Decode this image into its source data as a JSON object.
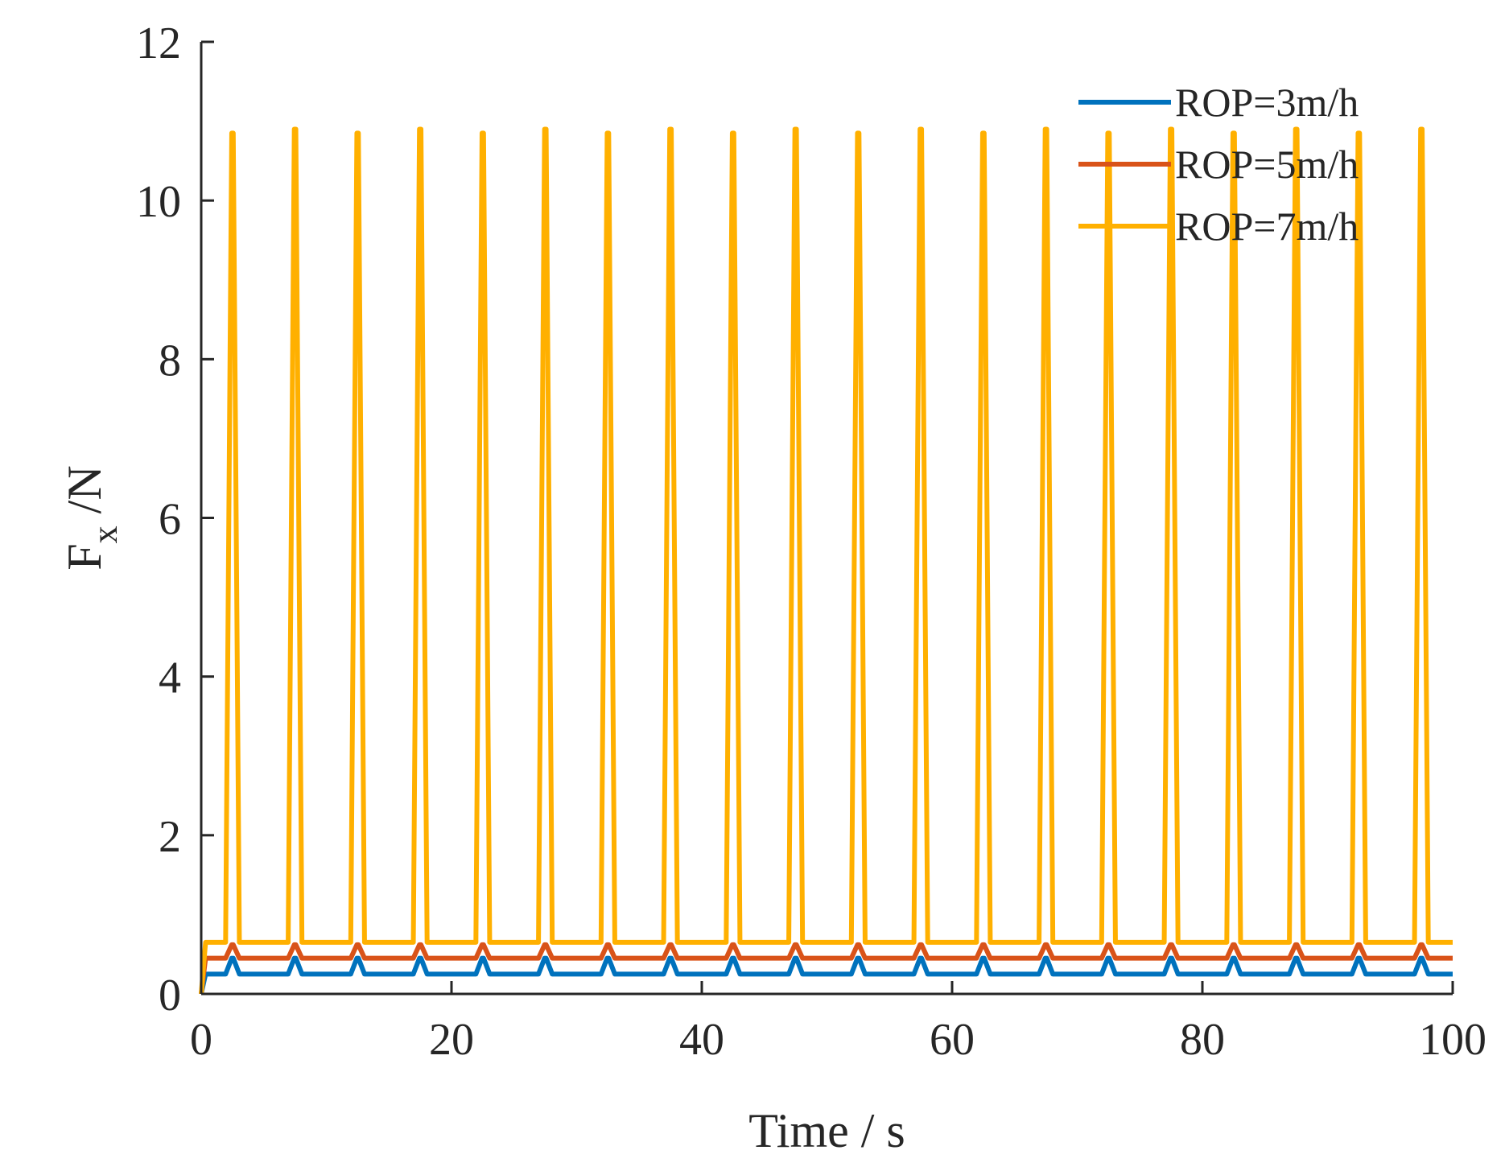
{
  "chart_data": {
    "type": "line",
    "title": "",
    "xlabel": "Time / s",
    "ylabel_main": "F",
    "ylabel_sub": "x",
    "ylabel_unit": " /N",
    "xlim": [
      0,
      100
    ],
    "ylim": [
      0,
      12
    ],
    "xticks": [
      0,
      20,
      40,
      60,
      80,
      100
    ],
    "yticks": [
      0,
      2,
      4,
      6,
      8,
      10,
      12
    ],
    "xtick_labels": [
      "0",
      "20",
      "40",
      "60",
      "80",
      "100"
    ],
    "ytick_labels": [
      "0",
      "2",
      "4",
      "6",
      "8",
      "10",
      "12"
    ],
    "grid": false,
    "legend_position": "top-right",
    "spike_period_s": 5,
    "spike_first_s": 2.5,
    "series": [
      {
        "name": "ROP=3m/h",
        "color": "#0072BD",
        "baseline": 0.25,
        "spike_peak": 0.45
      },
      {
        "name": "ROP=5m/h",
        "color": "#D95319",
        "baseline": 0.45,
        "spike_peak": 0.62
      },
      {
        "name": "ROP=7m/h",
        "color": "#FFB000",
        "baseline": 0.65,
        "spike_peaks": [
          10.85,
          10.9,
          10.85,
          10.9,
          10.85,
          10.9,
          10.85,
          10.9,
          10.85,
          10.9,
          10.85,
          10.9,
          10.85,
          10.9,
          10.85,
          10.9,
          10.85,
          10.9,
          10.85,
          10.9
        ]
      }
    ]
  }
}
